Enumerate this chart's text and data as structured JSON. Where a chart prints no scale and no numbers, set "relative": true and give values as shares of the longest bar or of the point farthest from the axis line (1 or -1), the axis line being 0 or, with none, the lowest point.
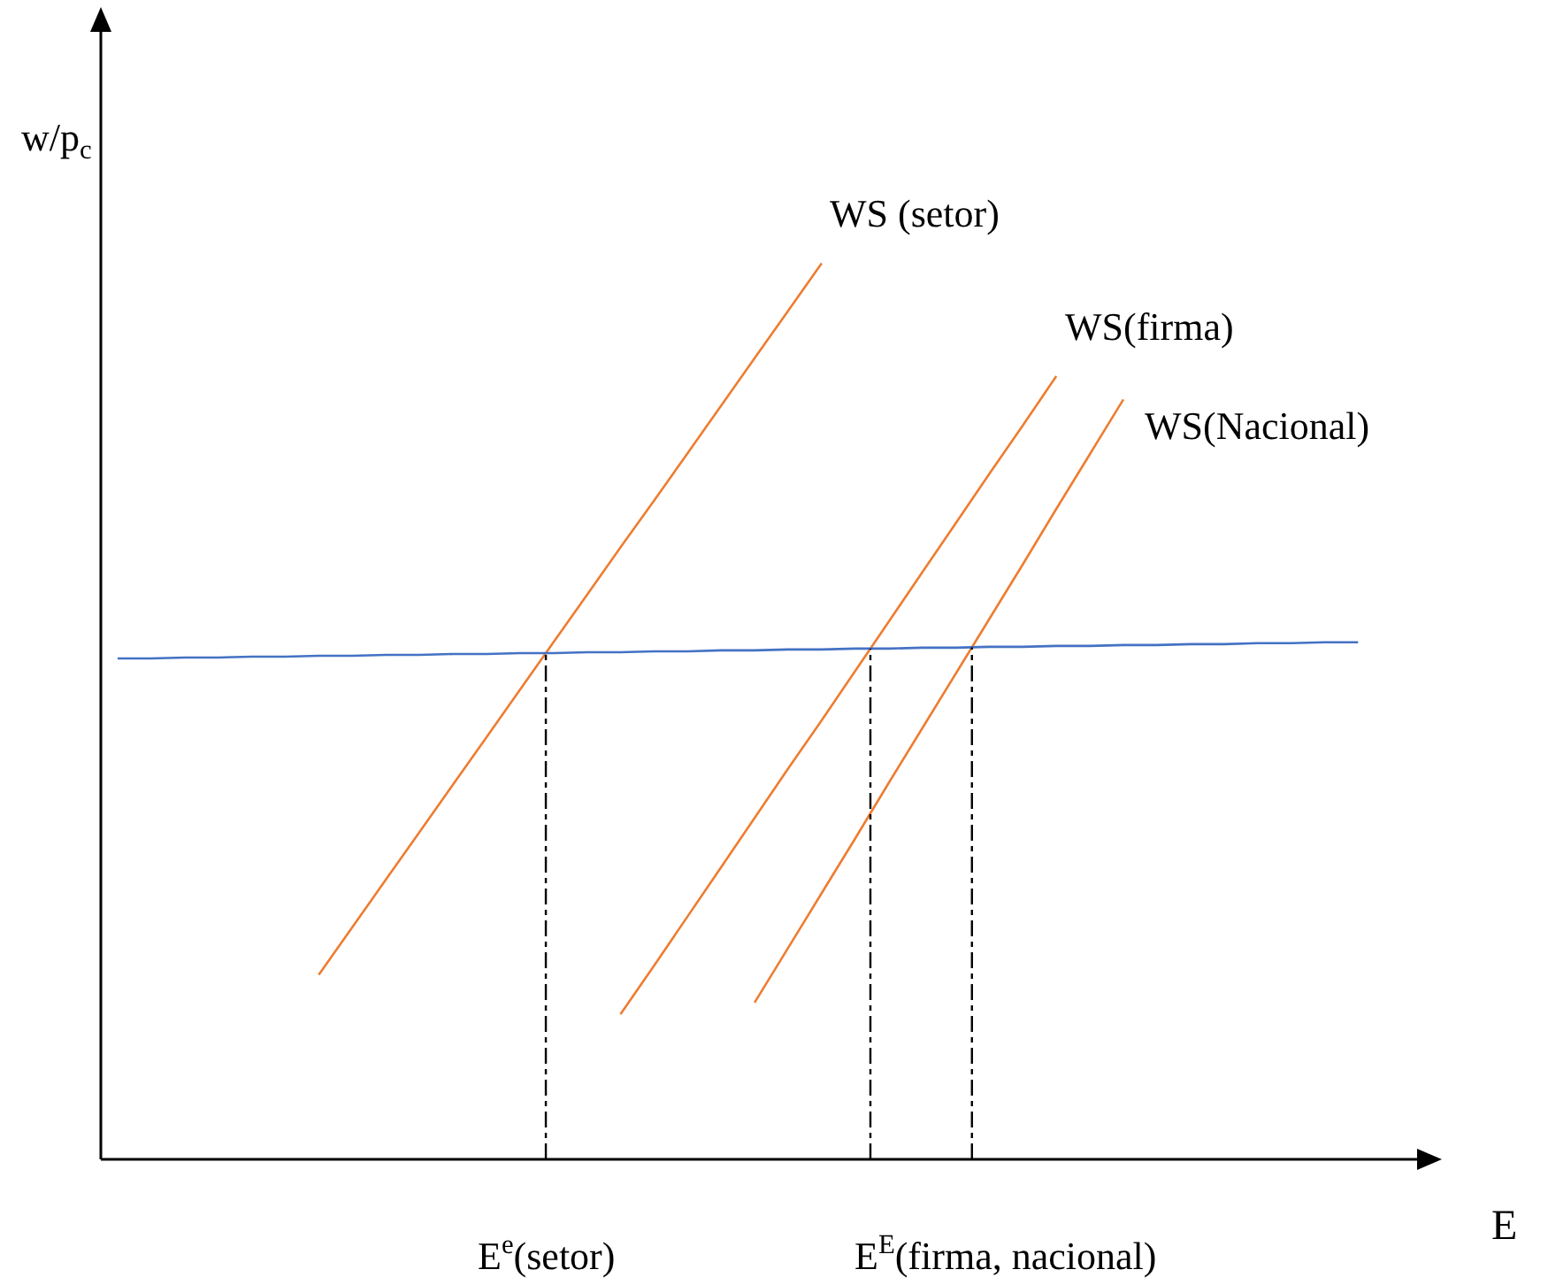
{
  "chart_data": {
    "type": "line",
    "relative": true,
    "xlabel": "E",
    "ylabel": "w/p$_{c}$",
    "legend": false,
    "grid": false,
    "categories": [
      null,
      null,
      null,
      null,
      null,
      null,
      null,
      null,
      null,
      null,
      null,
      null,
      null,
      null,
      null,
      null,
      null,
      null,
      null,
      null,
      null,
      null,
      null,
      null,
      null,
      null,
      null,
      null,
      null,
      null,
      null,
      null,
      null,
      null,
      null,
      null,
      null,
      null,
      null,
      null
    ],
    "series": [
      {
        "name": "WS (setor)",
        "color": "#ed7d31",
        "values": [
          null,
          null,
          null,
          null,
          null,
          null,
          0.206,
          0.259,
          0.312,
          0.365,
          0.418,
          0.471,
          0.524,
          0.577,
          0.63,
          0.683,
          0.735,
          0.788,
          0.841,
          0.894,
          0.947,
          1,
          null,
          null,
          null,
          null,
          null,
          null,
          null,
          null,
          null,
          null,
          null,
          null,
          null,
          null,
          null,
          null,
          null,
          null
        ]
      },
      {
        "name": "WS(firma)",
        "color": "#ed7d31",
        "values": [
          null,
          null,
          null,
          null,
          null,
          null,
          null,
          null,
          null,
          null,
          null,
          null,
          null,
          null,
          null,
          0.162,
          0.216,
          0.271,
          0.326,
          0.381,
          0.436,
          0.49,
          0.545,
          0.6,
          0.655,
          0.71,
          0.765,
          0.819,
          0.874,
          null,
          null,
          null,
          null,
          null,
          null,
          null,
          null,
          null,
          null,
          null
        ]
      },
      {
        "name": "WS(Nacional)",
        "color": "#ed7d31",
        "values": [
          null,
          null,
          null,
          null,
          null,
          null,
          null,
          null,
          null,
          null,
          null,
          null,
          null,
          null,
          null,
          null,
          null,
          null,
          null,
          0.175,
          0.236,
          0.297,
          0.358,
          0.42,
          0.481,
          0.542,
          0.603,
          0.664,
          0.726,
          0.787,
          0.848,
          null,
          null,
          null,
          null,
          null,
          null,
          null,
          null,
          null
        ]
      },
      {
        "color": "#4472c4",
        "values": [
          0.559,
          0.559,
          0.56,
          0.56,
          0.561,
          0.561,
          0.562,
          0.562,
          0.563,
          0.563,
          0.564,
          0.564,
          0.565,
          0.565,
          0.566,
          0.566,
          0.567,
          0.567,
          0.568,
          0.568,
          0.569,
          0.569,
          0.57,
          0.57,
          0.571,
          0.571,
          0.572,
          0.572,
          0.573,
          0.573,
          0.574,
          0.574,
          0.575,
          0.575,
          0.576,
          0.576,
          0.577,
          0.577,
          null,
          null
        ]
      }
    ],
    "annotations": [
      "E$^{e}$(setor)",
      "E$^{E}$(firma, nacional)"
    ]
  }
}
